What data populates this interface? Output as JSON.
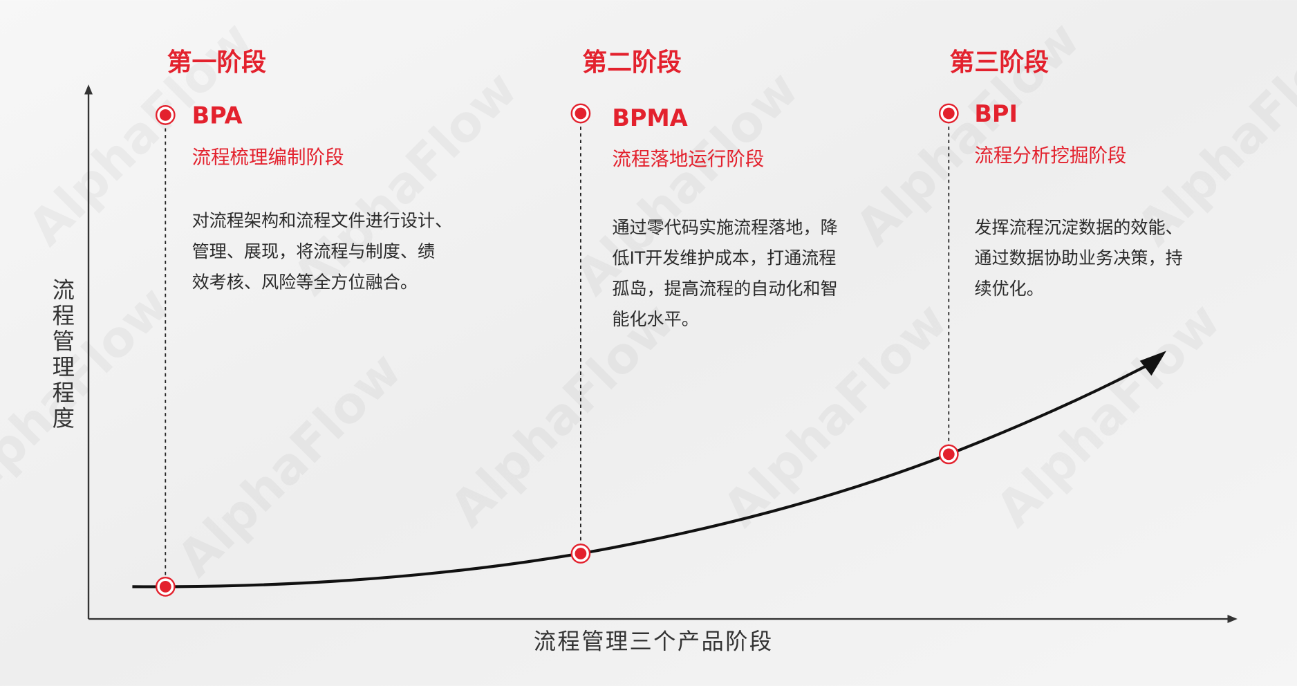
{
  "watermark": "AlphaFlow",
  "y_axis_label": "流程管理程度",
  "x_axis_label": "流程管理三个产品阶段",
  "stages": [
    {
      "title": "第一阶段",
      "name": "BPA",
      "subtitle": "流程梳理编制阶段",
      "description_lines": [
        "对流程架构和流程文件进行设计、",
        "管理、展现，将流程与制度、绩",
        "效考核、风险等全方位融合。"
      ]
    },
    {
      "title": "第二阶段",
      "name": "BPMA",
      "subtitle": "流程落地运行阶段",
      "description_lines": [
        "通过零代码实施流程落地，降",
        "低IT开发维护成本，打通流程",
        "孤岛，提高流程的自动化和智",
        "能化水平。"
      ]
    },
    {
      "title": "第三阶段",
      "name": "BPI",
      "subtitle": "流程分析挖掘阶段",
      "description_lines": [
        "发挥流程沉淀数据的效能、",
        "通过数据协助业务决策，持",
        "续优化。"
      ]
    }
  ]
}
